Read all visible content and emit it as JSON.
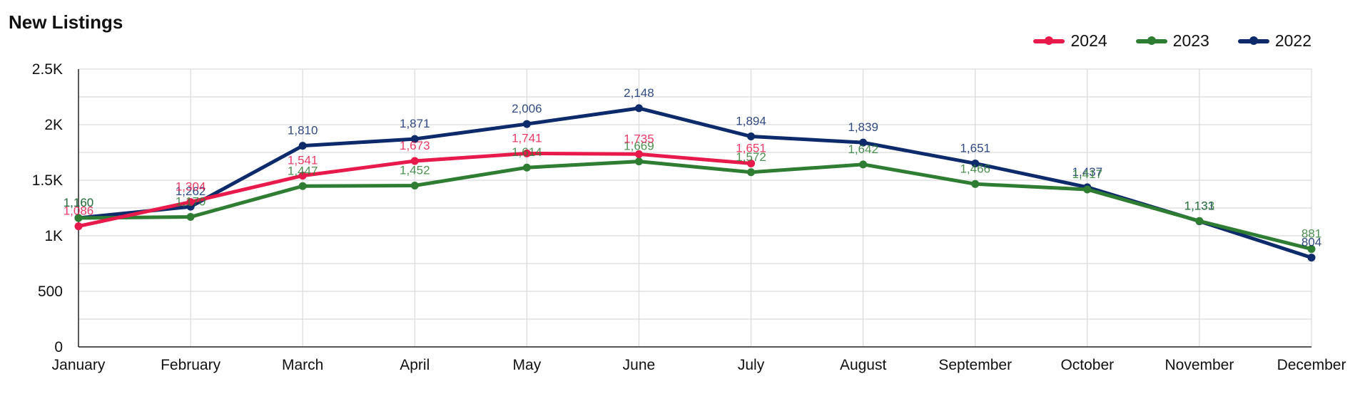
{
  "chart_data": {
    "type": "line",
    "title": "New Listings",
    "xlabel": "",
    "ylabel": "",
    "ylim": [
      0,
      2500
    ],
    "grid": true,
    "legend_position": "top-right",
    "categories": [
      "January",
      "February",
      "March",
      "April",
      "May",
      "June",
      "July",
      "August",
      "September",
      "October",
      "November",
      "December"
    ],
    "y_ticks": [
      {
        "value": 0,
        "label": "0"
      },
      {
        "value": 500,
        "label": "500"
      },
      {
        "value": 1000,
        "label": "1K"
      },
      {
        "value": 1500,
        "label": "1.5K"
      },
      {
        "value": 2000,
        "label": "2K"
      },
      {
        "value": 2500,
        "label": "2.5K"
      }
    ],
    "series": [
      {
        "name": "2024",
        "color": "#E8194B",
        "values": [
          1086,
          1304,
          1541,
          1673,
          1741,
          1735,
          1651,
          null,
          null,
          null,
          null,
          null
        ],
        "labels": [
          "1,086",
          "1,304",
          "1,541",
          "1,673",
          "1,741",
          "1,735",
          "1,651",
          null,
          null,
          null,
          null,
          null
        ]
      },
      {
        "name": "2023",
        "color": "#2E7D32",
        "values": [
          1160,
          1170,
          1447,
          1452,
          1614,
          1669,
          1572,
          1642,
          1466,
          1417,
          1133,
          881
        ],
        "labels": [
          "1,160",
          "1,170",
          "1,447",
          "1,452",
          "1,614",
          "1,669",
          "1,572",
          "1,642",
          "1,466",
          "1,417",
          "1,133",
          "881"
        ]
      },
      {
        "name": "2022",
        "color": "#0D2A6B",
        "values": [
          1160,
          1262,
          1810,
          1871,
          2006,
          2148,
          1894,
          1839,
          1651,
          1437,
          1131,
          804
        ],
        "labels": [
          "1,160",
          "1,262",
          "1,810",
          "1,871",
          "2,006",
          "2,148",
          "1,894",
          "1,839",
          "1,651",
          "1,437",
          "1,131",
          "804"
        ]
      }
    ]
  }
}
